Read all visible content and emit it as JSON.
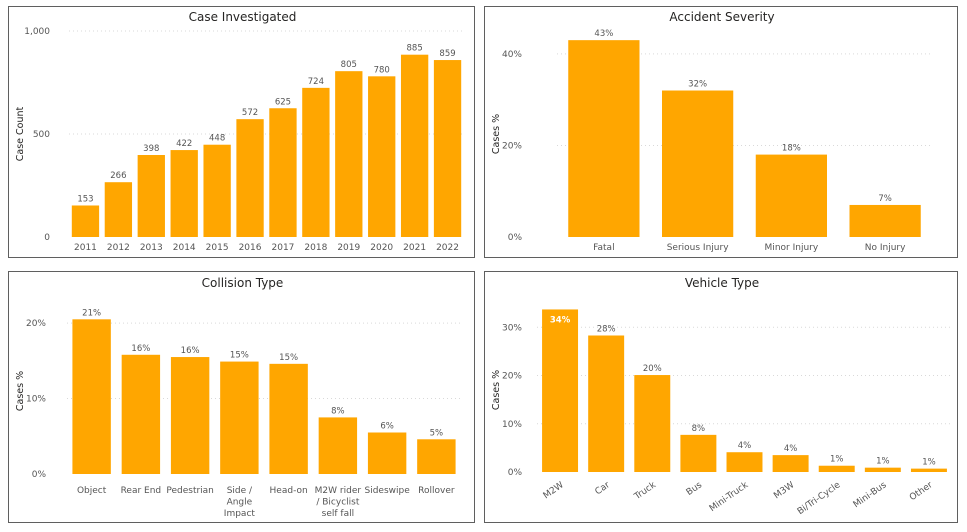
{
  "colors": {
    "bar": "#FFA600",
    "axis_text": "#555555",
    "title": "#252423"
  },
  "chart_data": [
    {
      "id": "case",
      "type": "bar",
      "title": "Case Investigated",
      "xlabel": "",
      "ylabel": "Case Count",
      "ylim": [
        0,
        1000
      ],
      "yticks": [
        0,
        500,
        1000
      ],
      "ytick_labels": [
        "0",
        "500",
        "1,000"
      ],
      "categories": [
        "2011",
        "2012",
        "2013",
        "2014",
        "2015",
        "2016",
        "2017",
        "2018",
        "2019",
        "2020",
        "2021",
        "2022"
      ],
      "values": [
        153,
        266,
        398,
        422,
        448,
        572,
        625,
        724,
        805,
        780,
        885,
        859
      ],
      "labels": [
        "153",
        "266",
        "398",
        "422",
        "448",
        "572",
        "625",
        "724",
        "805",
        "780",
        "885",
        "859"
      ],
      "grid": true
    },
    {
      "id": "severity",
      "type": "bar",
      "title": "Accident Severity",
      "xlabel": "",
      "ylabel": "Cases %",
      "ylim": [
        0,
        45
      ],
      "yticks": [
        0,
        20,
        40
      ],
      "ytick_labels": [
        "0%",
        "20%",
        "40%"
      ],
      "categories": [
        "Fatal",
        "Serious Injury",
        "Minor Injury",
        "No Injury"
      ],
      "values": [
        43,
        32,
        18,
        7
      ],
      "labels": [
        "43%",
        "32%",
        "18%",
        "7%"
      ],
      "grid": true
    },
    {
      "id": "collision",
      "type": "bar",
      "title": "Collision Type",
      "xlabel": "",
      "ylabel": "Cases %",
      "ylim": [
        0,
        22
      ],
      "yticks": [
        0,
        10,
        20
      ],
      "ytick_labels": [
        "0%",
        "10%",
        "20%"
      ],
      "categories": [
        "Object",
        "Rear End",
        "Pedestrian",
        "Side / Angle Impact",
        "Head-on",
        "M2W rider / Bicyclist self fall",
        "Sideswipe",
        "Rollover"
      ],
      "category_lines": [
        [
          "Object"
        ],
        [
          "Rear End"
        ],
        [
          "Pedestrian"
        ],
        [
          "Side /",
          "Angle",
          "Impact"
        ],
        [
          "Head-on"
        ],
        [
          "M2W rider",
          "/ Bicyclist",
          "self fall"
        ],
        [
          "Sideswipe"
        ],
        [
          "Rollover"
        ]
      ],
      "values": [
        20.5,
        15.8,
        15.5,
        14.9,
        14.6,
        7.5,
        5.5,
        4.6
      ],
      "labels": [
        "21%",
        "16%",
        "16%",
        "15%",
        "15%",
        "8%",
        "6%",
        "5%"
      ],
      "grid": true
    },
    {
      "id": "vehicle",
      "type": "bar",
      "title": "Vehicle Type",
      "xlabel": "",
      "ylabel": "Cases %",
      "ylim": [
        0,
        34
      ],
      "yticks": [
        0,
        10,
        20,
        30
      ],
      "ytick_labels": [
        "0%",
        "10%",
        "20%",
        "30%"
      ],
      "categories": [
        "M2W",
        "Car",
        "Truck",
        "Bus",
        "Mini-Truck",
        "M3W",
        "Bi/Tri-Cycle",
        "Mini-Bus",
        "Other"
      ],
      "values": [
        33.7,
        28.3,
        20.1,
        7.7,
        4.1,
        3.5,
        1.3,
        0.9,
        0.7
      ],
      "labels": [
        "34%",
        "28%",
        "20%",
        "8%",
        "4%",
        "4%",
        "1%",
        "1%",
        "1%"
      ],
      "rotated_labels": true,
      "grid": true
    }
  ]
}
